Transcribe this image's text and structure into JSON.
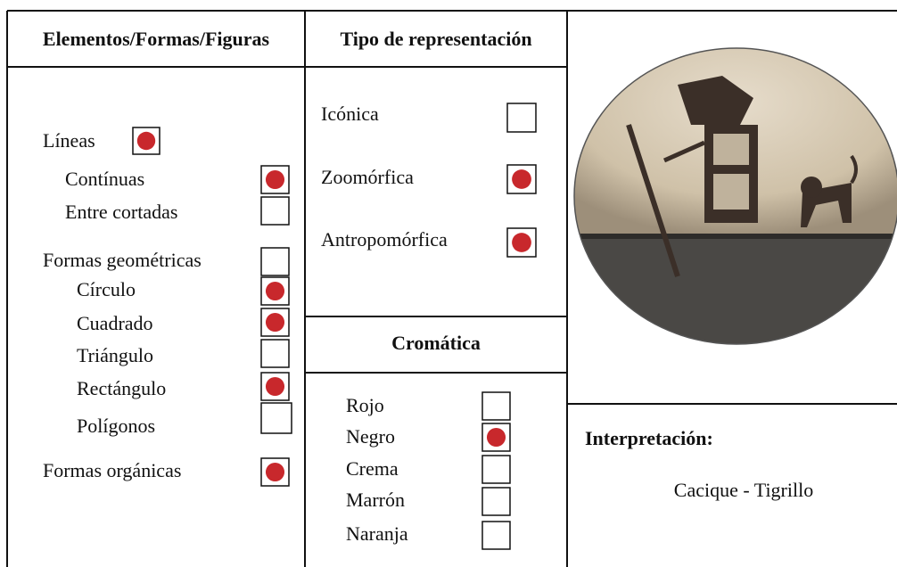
{
  "columns": [
    {
      "header": "Elementos/Formas/Figuras",
      "items": [
        {
          "label": "Líneas",
          "checked": true
        },
        {
          "label": "Contínuas",
          "checked": true
        },
        {
          "label": "Entre cortadas",
          "checked": false
        },
        {
          "label": "Formas geométricas",
          "checked": false
        },
        {
          "label": "Círculo",
          "checked": true
        },
        {
          "label": "Cuadrado",
          "checked": true
        },
        {
          "label": "Triángulo",
          "checked": false
        },
        {
          "label": "Rectángulo",
          "checked": true
        },
        {
          "label": "Polígonos",
          "checked": false
        },
        {
          "label": "Formas orgánicas",
          "checked": true
        }
      ]
    },
    {
      "header": "Tipo de representación",
      "items": [
        {
          "label": "Icónica",
          "checked": false
        },
        {
          "label": "Zoomórfica",
          "checked": true
        },
        {
          "label": "Antropomórfica",
          "checked": true
        }
      ]
    },
    {
      "header": "Cromática",
      "items": [
        {
          "label": "Rojo",
          "checked": false
        },
        {
          "label": "Negro",
          "checked": true
        },
        {
          "label": "Crema",
          "checked": false
        },
        {
          "label": "Marrón",
          "checked": false
        },
        {
          "label": "Naranja",
          "checked": false
        }
      ]
    }
  ],
  "interpretation": {
    "title": "Interpretación:",
    "text": "Cacique - Tigrillo"
  }
}
